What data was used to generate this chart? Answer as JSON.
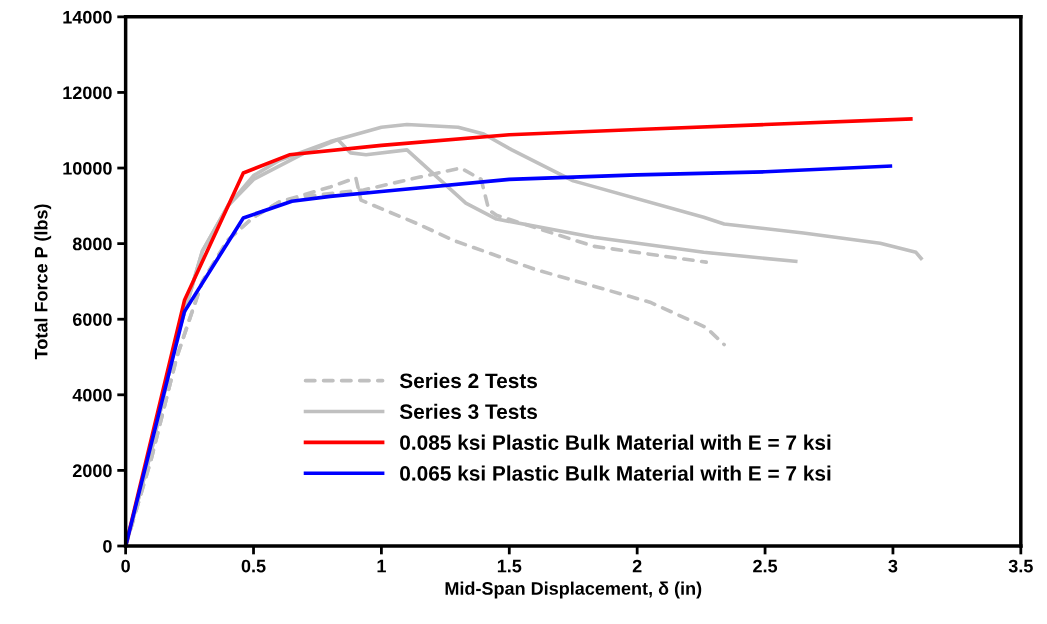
{
  "chart_data": {
    "type": "line",
    "xlabel": "Mid-Span Displacement, δ (in)",
    "ylabel": "Total Force P (lbs)",
    "xlim": [
      0,
      3.5
    ],
    "xticks": [
      0,
      0.5,
      1,
      1.5,
      2,
      2.5,
      3,
      3.5
    ],
    "ylim": [
      0,
      14000
    ],
    "yticks": [
      0,
      2000,
      4000,
      6000,
      8000,
      10000,
      12000,
      14000
    ],
    "grid": false,
    "legend": "bottom",
    "marker": "none",
    "series": [
      {
        "name": "Series 2 Tests",
        "color": "#c0c0c0",
        "line_style": "dashed",
        "x": [
          0,
          0.1,
          0.2,
          0.3,
          0.4,
          0.5,
          0.6,
          0.7,
          0.8,
          0.9,
          0.92,
          1.15,
          1.28,
          1.6,
          2.05,
          2.27,
          2.34
        ],
        "values": [
          0,
          2300,
          5000,
          7000,
          8100,
          8700,
          9100,
          9300,
          9500,
          9740,
          9150,
          8500,
          8090,
          7320,
          6450,
          5780,
          5330
        ]
      },
      {
        "color": "#c0c0c0",
        "line_style": "dashed",
        "x": [
          0,
          0.1,
          0.2,
          0.3,
          0.4,
          0.5,
          0.6,
          0.7,
          0.93,
          1.15,
          1.31,
          1.39,
          1.42,
          1.45,
          1.83,
          2.27
        ],
        "values": [
          0,
          2300,
          5000,
          7000,
          8100,
          8700,
          9100,
          9250,
          9420,
          9760,
          10000,
          9700,
          8890,
          8750,
          7930,
          7510
        ]
      },
      {
        "name": "Series 3 Tests",
        "color": "#c0c0c0",
        "line_style": "solid",
        "x": [
          0,
          0.1,
          0.2,
          0.3,
          0.4,
          0.5,
          0.6,
          0.8,
          1.0,
          1.1,
          1.3,
          1.4,
          1.51,
          1.75,
          2.26,
          2.34,
          2.65,
          2.95,
          3.09,
          3.11
        ],
        "values": [
          0,
          2500,
          5500,
          7800,
          9000,
          9800,
          10200,
          10700,
          11080,
          11150,
          11080,
          10900,
          10480,
          9660,
          8700,
          8520,
          8280,
          8010,
          7770,
          7610
        ]
      },
      {
        "color": "#c0c0c0",
        "line_style": "solid",
        "x": [
          0,
          0.1,
          0.2,
          0.3,
          0.4,
          0.5,
          0.7,
          0.83,
          0.88,
          0.94,
          1.1,
          1.33,
          1.45,
          1.83,
          2.26,
          2.62
        ],
        "values": [
          0,
          2500,
          5500,
          7800,
          9000,
          9700,
          10400,
          10750,
          10400,
          10350,
          10480,
          9070,
          8650,
          8170,
          7770,
          7530
        ]
      },
      {
        "name": "0.085 ksi Plastic Bulk Material with E = 7 ksi",
        "color": "#ff0000",
        "line_style": "solid",
        "x": [
          0,
          0.23,
          0.46,
          0.64,
          1,
          1.5,
          2,
          2.5,
          3.07
        ],
        "values": [
          0,
          6500,
          9870,
          10350,
          10600,
          10880,
          11020,
          11150,
          11300
        ]
      },
      {
        "name": "0.065 ksi Plastic Bulk Material with E = 7 ksi",
        "color": "#0000ff",
        "line_style": "solid",
        "x": [
          0,
          0.23,
          0.46,
          0.65,
          0.8,
          1,
          1.5,
          2,
          2.5,
          2.99
        ],
        "values": [
          0,
          6200,
          8680,
          9120,
          9250,
          9380,
          9700,
          9820,
          9900,
          10050
        ]
      }
    ]
  }
}
